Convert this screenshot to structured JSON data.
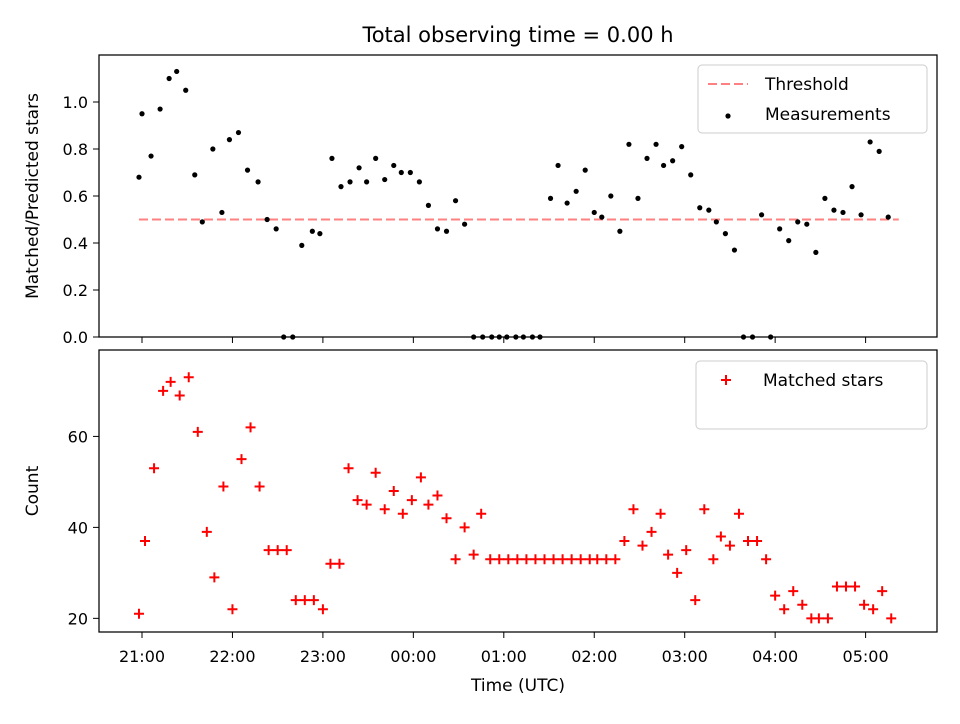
{
  "title": "Total observing time = 0.00 h",
  "xlabel": "Time (UTC)",
  "x_ticks": [
    "21:00",
    "22:00",
    "23:00",
    "00:00",
    "01:00",
    "02:00",
    "03:00",
    "04:00",
    "05:00"
  ],
  "chart_data": [
    {
      "type": "scatter",
      "ylabel": "Matched/Predicted stars",
      "ylim": [
        0,
        1.2
      ],
      "y_ticks": [
        0.0,
        0.2,
        0.4,
        0.6,
        0.8,
        1.0
      ],
      "y_tick_labels": [
        "0.0",
        "0.2",
        "0.4",
        "0.6",
        "0.8",
        "1.0"
      ],
      "legend_position": "top-right",
      "threshold": {
        "name": "Threshold",
        "value": 0.5,
        "x_start": "20:58",
        "x_end": "05:22",
        "color": "#ff8080"
      },
      "series": [
        {
          "name": "Measurements",
          "color": "#000000",
          "marker": "dot",
          "x": [
            "20:58",
            "21:00",
            "21:06",
            "21:12",
            "21:18",
            "21:23",
            "21:29",
            "21:35",
            "21:40",
            "21:47",
            "21:53",
            "21:58",
            "22:04",
            "22:10",
            "22:17",
            "22:23",
            "22:29",
            "22:34",
            "22:40",
            "22:46",
            "22:53",
            "22:58",
            "23:06",
            "23:12",
            "23:18",
            "23:24",
            "23:29",
            "23:35",
            "23:41",
            "23:47",
            "23:52",
            "23:58",
            "00:04",
            "00:10",
            "00:16",
            "00:22",
            "00:28",
            "00:34",
            "00:40",
            "00:46",
            "00:52",
            "00:57",
            "01:02",
            "01:08",
            "01:13",
            "01:19",
            "01:24",
            "01:31",
            "01:36",
            "01:42",
            "01:48",
            "01:54",
            "02:00",
            "02:05",
            "02:11",
            "02:17",
            "02:23",
            "02:29",
            "02:35",
            "02:41",
            "02:46",
            "02:52",
            "02:58",
            "03:04",
            "03:10",
            "03:16",
            "03:21",
            "03:27",
            "03:33",
            "03:39",
            "03:45",
            "03:51",
            "03:57",
            "04:03",
            "04:09",
            "04:15",
            "04:21",
            "04:27",
            "04:33",
            "04:39",
            "04:45",
            "04:51",
            "04:57",
            "05:03",
            "05:09",
            "05:15"
          ],
          "y": [
            0.68,
            0.95,
            0.77,
            0.97,
            1.1,
            1.13,
            1.05,
            0.69,
            0.49,
            0.8,
            0.53,
            0.84,
            0.87,
            0.71,
            0.66,
            0.5,
            0.46,
            0.0,
            0.0,
            0.39,
            0.45,
            0.44,
            0.76,
            0.64,
            0.66,
            0.72,
            0.66,
            0.76,
            0.67,
            0.73,
            0.7,
            0.7,
            0.66,
            0.56,
            0.46,
            0.45,
            0.58,
            0.48,
            0.0,
            0.0,
            0.0,
            0.0,
            0.0,
            0.0,
            0.0,
            0.0,
            0.0,
            0.59,
            0.73,
            0.57,
            0.62,
            0.71,
            0.53,
            0.51,
            0.6,
            0.45,
            0.82,
            0.59,
            0.76,
            0.82,
            0.73,
            0.75,
            0.81,
            0.69,
            0.55,
            0.54,
            0.49,
            0.44,
            0.37,
            0.0,
            0.0,
            0.52,
            0.0,
            0.46,
            0.41,
            0.49,
            0.48,
            0.36,
            0.59,
            0.54,
            0.53,
            0.64,
            0.52,
            0.83,
            0.79,
            0.51
          ]
        }
      ]
    },
    {
      "type": "scatter",
      "ylabel": "Count",
      "ylim": [
        17,
        79
      ],
      "y_ticks": [
        20,
        40,
        60
      ],
      "y_tick_labels": [
        "20",
        "40",
        "60"
      ],
      "legend_position": "top-right",
      "series": [
        {
          "name": "Matched stars",
          "color": "#ff0000",
          "marker": "plus",
          "x": [
            "20:58",
            "21:02",
            "21:08",
            "21:14",
            "21:19",
            "21:25",
            "21:31",
            "21:37",
            "21:43",
            "21:48",
            "21:54",
            "22:00",
            "22:06",
            "22:12",
            "22:18",
            "22:24",
            "22:30",
            "22:36",
            "22:42",
            "22:48",
            "22:54",
            "23:00",
            "23:05",
            "23:11",
            "23:17",
            "23:23",
            "23:29",
            "23:35",
            "23:41",
            "23:47",
            "23:53",
            "23:59",
            "00:05",
            "00:10",
            "00:16",
            "00:22",
            "00:28",
            "00:34",
            "00:40",
            "00:45",
            "00:51",
            "00:57",
            "01:03",
            "01:09",
            "01:15",
            "01:21",
            "01:27",
            "01:33",
            "01:39",
            "01:45",
            "01:51",
            "01:57",
            "02:02",
            "02:08",
            "02:14",
            "02:20",
            "02:26",
            "02:32",
            "02:38",
            "02:44",
            "02:49",
            "02:55",
            "03:01",
            "03:07",
            "03:13",
            "03:19",
            "03:24",
            "03:30",
            "03:36",
            "03:42",
            "03:48",
            "03:54",
            "04:00",
            "04:06",
            "04:12",
            "04:18",
            "04:24",
            "04:29",
            "04:35",
            "04:41",
            "04:47",
            "04:53",
            "04:59",
            "05:05",
            "05:11",
            "05:17"
          ],
          "y": [
            21,
            37,
            53,
            70,
            72,
            69,
            73,
            61,
            39,
            29,
            49,
            22,
            55,
            62,
            49,
            35,
            35,
            35,
            24,
            24,
            24,
            22,
            32,
            32,
            53,
            46,
            45,
            52,
            44,
            48,
            43,
            46,
            51,
            45,
            47,
            42,
            33,
            40,
            34,
            43,
            33,
            33,
            33,
            33,
            33,
            33,
            33,
            33,
            33,
            33,
            33,
            33,
            33,
            33,
            33,
            37,
            44,
            36,
            39,
            43,
            34,
            30,
            35,
            24,
            44,
            33,
            38,
            36,
            43,
            37,
            37,
            33,
            25,
            22,
            26,
            23,
            20,
            20,
            20,
            27,
            27,
            27,
            23,
            22,
            26,
            20
          ]
        }
      ]
    }
  ]
}
